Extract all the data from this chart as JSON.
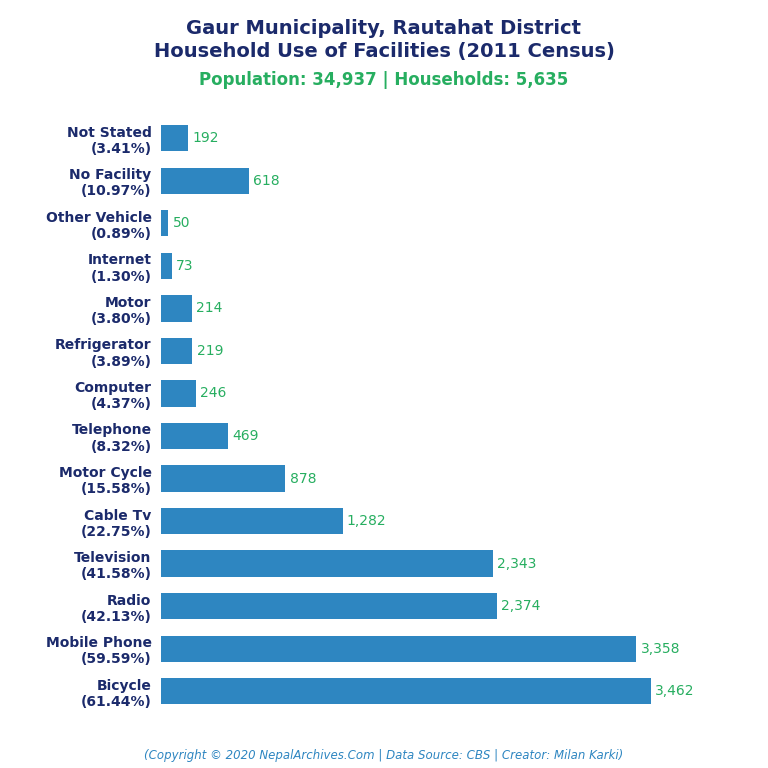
{
  "title_line1": "Gaur Municipality, Rautahat District",
  "title_line2": "Household Use of Facilities (2011 Census)",
  "subtitle": "Population: 34,937 | Households: 5,635",
  "footer": "(Copyright © 2020 NepalArchives.Com | Data Source: CBS | Creator: Milan Karki)",
  "categories": [
    "Not Stated\n(3.41%)",
    "No Facility\n(10.97%)",
    "Other Vehicle\n(0.89%)",
    "Internet\n(1.30%)",
    "Motor\n(3.80%)",
    "Refrigerator\n(3.89%)",
    "Computer\n(4.37%)",
    "Telephone\n(8.32%)",
    "Motor Cycle\n(15.58%)",
    "Cable Tv\n(22.75%)",
    "Television\n(41.58%)",
    "Radio\n(42.13%)",
    "Mobile Phone\n(59.59%)",
    "Bicycle\n(61.44%)"
  ],
  "values": [
    192,
    618,
    50,
    73,
    214,
    219,
    246,
    469,
    878,
    1282,
    2343,
    2374,
    3358,
    3462
  ],
  "bar_color": "#2E86C1",
  "value_color": "#27AE60",
  "title_color": "#1B2A6B",
  "subtitle_color": "#27AE60",
  "footer_color": "#2E86C1",
  "background_color": "#FFFFFF",
  "xlim": [
    0,
    3800
  ],
  "title_fontsize": 14,
  "subtitle_fontsize": 12,
  "label_fontsize": 10,
  "value_fontsize": 10,
  "footer_fontsize": 8.5
}
